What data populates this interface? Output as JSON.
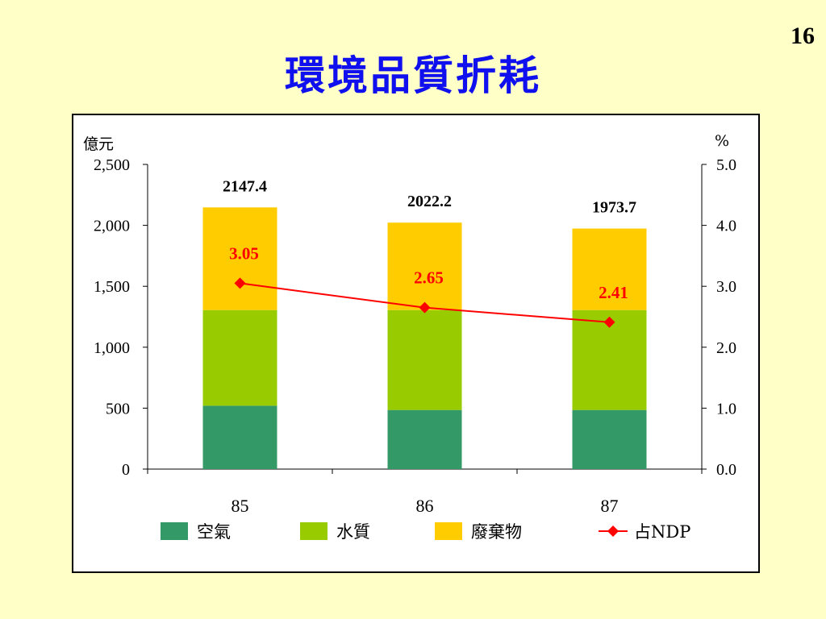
{
  "slide": {
    "page_number": "16",
    "title": "環境品質折耗"
  },
  "chart_data": {
    "type": "bar",
    "stacked": true,
    "categories": [
      "85",
      "86",
      "87"
    ],
    "series": [
      {
        "name": "空氣",
        "values": [
          520,
          485,
          485
        ],
        "color": "#339966"
      },
      {
        "name": "水質",
        "values": [
          785,
          820,
          820
        ],
        "color": "#99cc00"
      },
      {
        "name": "廢棄物",
        "values": [
          842.4,
          717.2,
          668.7
        ],
        "color": "#ffcc00"
      }
    ],
    "totals": [
      "2147.4",
      "2022.2",
      "1973.7"
    ],
    "line_series": {
      "name": "占NDP",
      "values": [
        3.05,
        2.65,
        2.41
      ],
      "labels": [
        "3.05",
        "2.65",
        "2.41"
      ],
      "color": "#ff0000",
      "axis": "right"
    },
    "y_left": {
      "unit_label": "億元",
      "range": [
        0,
        2500
      ],
      "ticks": [
        0,
        500,
        1000,
        1500,
        2000,
        2500
      ],
      "tick_labels": [
        "0",
        "500",
        "1,000",
        "1,500",
        "2,000",
        "2,500"
      ]
    },
    "y_right": {
      "unit_label": "%",
      "range": [
        0,
        5
      ],
      "ticks": [
        0,
        1,
        2,
        3,
        4,
        5
      ],
      "tick_labels": [
        "0.0",
        "1.0",
        "2.0",
        "3.0",
        "4.0",
        "5.0"
      ]
    },
    "grid": false,
    "legend_position": "bottom"
  }
}
